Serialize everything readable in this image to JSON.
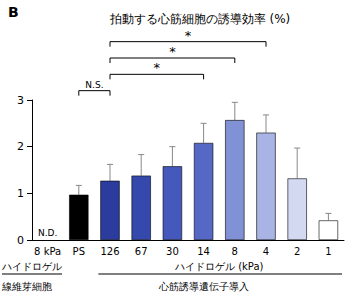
{
  "chart_data": {
    "type": "bar",
    "panel_label": "B",
    "title": "拍動する心筋細胞の誘導効率 (%)",
    "categories": [
      "8 kPa",
      "PS",
      "126",
      "67",
      "30",
      "14",
      "8",
      "4",
      "2",
      "1"
    ],
    "values": [
      null,
      0.97,
      1.27,
      1.38,
      1.58,
      2.08,
      2.57,
      2.3,
      1.32,
      0.42
    ],
    "errors": [
      null,
      0.2,
      0.35,
      0.45,
      0.42,
      0.42,
      0.38,
      0.38,
      0.65,
      0.15
    ],
    "colors": [
      "#000000",
      "#000000",
      "#2b3c9e",
      "#3549ad",
      "#4558bb",
      "#5668c5",
      "#8191d6",
      "#a9b4e4",
      "#d3d9f1",
      "#ffffff"
    ],
    "na_label": {
      "category": "8 kPa",
      "label": "N.D."
    },
    "brackets": [
      {
        "from": "PS",
        "to": "126",
        "label": "N.S."
      },
      {
        "from": "126",
        "to": "14",
        "label": "*"
      },
      {
        "from": "126",
        "to": "8",
        "label": "*"
      },
      {
        "from": "126",
        "to": "4",
        "label": "*"
      }
    ],
    "group_labels": [
      [
        {
          "label": "ハイドロゲル",
          "from": "8 kPa",
          "to": "8 kPa"
        },
        {
          "label": "ハイドロゲル (kPa)",
          "from": "126",
          "to": "1"
        }
      ],
      [
        {
          "label": "線維芽細胞",
          "from": "8 kPa",
          "to": "8 kPa"
        },
        {
          "label": "心筋誘導遺伝子導入",
          "from": "PS",
          "to": "1"
        }
      ]
    ],
    "ylim": [
      0,
      3
    ],
    "yticks": [
      0,
      1,
      2,
      3
    ],
    "grid": false
  }
}
